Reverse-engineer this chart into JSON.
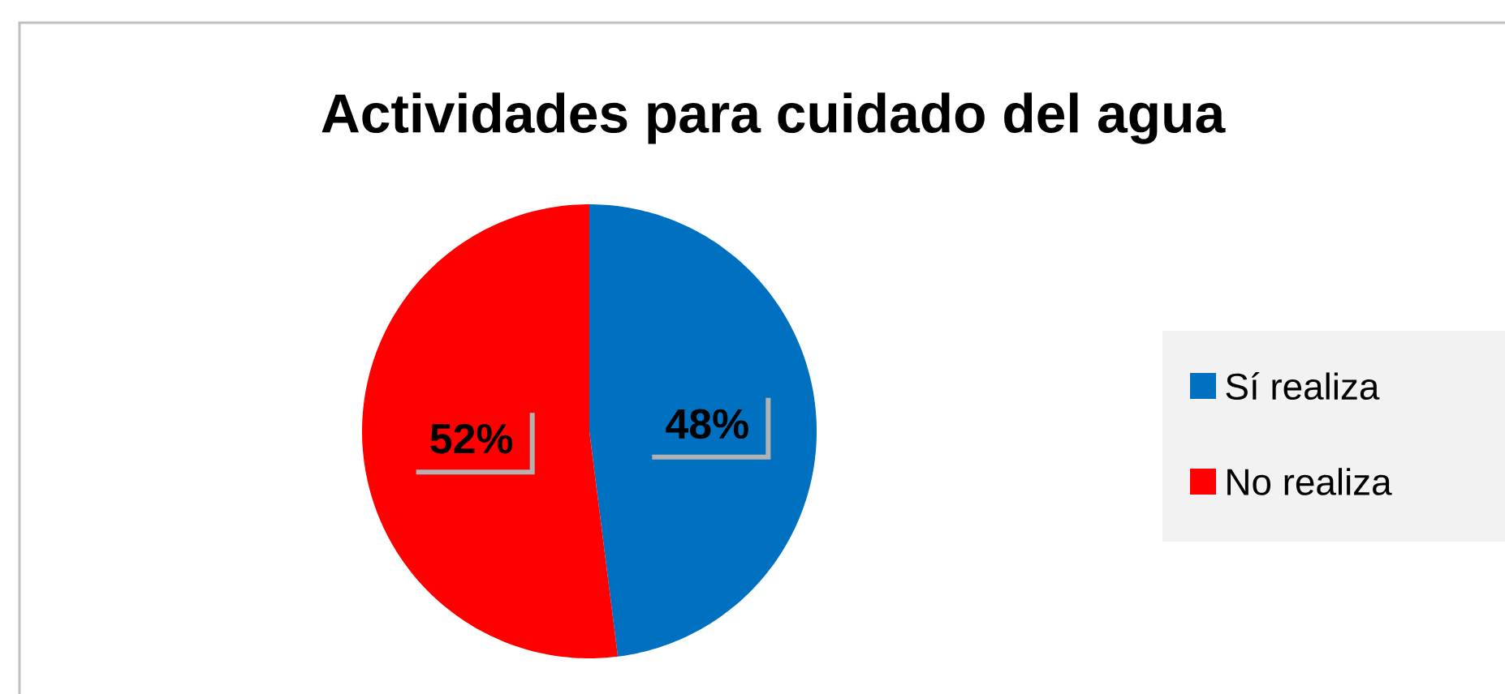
{
  "chart_data": {
    "type": "pie",
    "title": "Actividades para cuidado del agua",
    "categories": [
      "Sí realiza",
      "No realiza"
    ],
    "values": [
      48,
      52
    ],
    "colors": [
      "#0070c0",
      "#ff0000"
    ],
    "value_labels": [
      "48%",
      "52%"
    ],
    "legend": "right"
  }
}
